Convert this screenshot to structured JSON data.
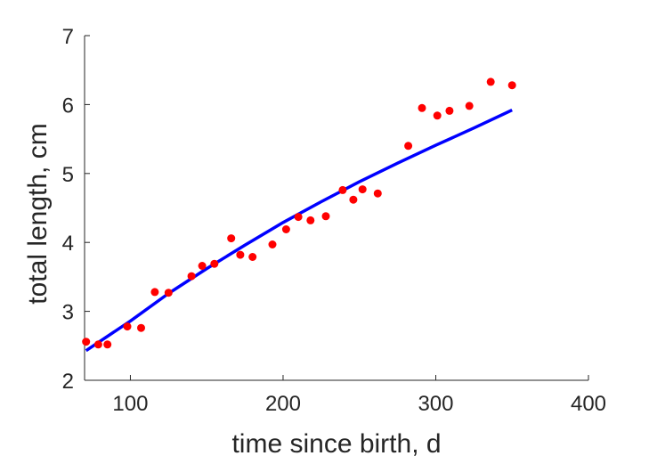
{
  "chart_data": {
    "type": "scatter",
    "xlabel": "time since birth, d",
    "ylabel": "total length, cm",
    "xlim": [
      70,
      400
    ],
    "ylim": [
      2,
      7
    ],
    "xticks": [
      100,
      200,
      300,
      400
    ],
    "yticks": [
      2,
      3,
      4,
      5,
      6,
      7
    ],
    "grid": false,
    "series": [
      {
        "kind": "scatter",
        "color": "#ff0000",
        "points": [
          [
            71,
            2.56
          ],
          [
            79,
            2.52
          ],
          [
            85,
            2.52
          ],
          [
            98,
            2.78
          ],
          [
            107,
            2.76
          ],
          [
            116,
            3.28
          ],
          [
            125,
            3.27
          ],
          [
            140,
            3.51
          ],
          [
            147,
            3.66
          ],
          [
            155,
            3.69
          ],
          [
            166,
            4.06
          ],
          [
            172,
            3.82
          ],
          [
            180,
            3.79
          ],
          [
            193,
            3.97
          ],
          [
            202,
            4.19
          ],
          [
            210,
            4.37
          ],
          [
            218,
            4.32
          ],
          [
            228,
            4.38
          ],
          [
            239,
            4.76
          ],
          [
            246,
            4.62
          ],
          [
            252,
            4.77
          ],
          [
            262,
            4.71
          ],
          [
            282,
            5.4
          ],
          [
            291,
            5.95
          ],
          [
            301,
            5.84
          ],
          [
            309,
            5.91
          ],
          [
            322,
            5.98
          ],
          [
            336,
            6.33
          ],
          [
            350,
            6.28
          ]
        ]
      },
      {
        "kind": "line",
        "color": "#0000ff",
        "points": [
          [
            71,
            2.43
          ],
          [
            100,
            2.86
          ],
          [
            125,
            3.26
          ],
          [
            150,
            3.62
          ],
          [
            175,
            3.96
          ],
          [
            200,
            4.29
          ],
          [
            225,
            4.59
          ],
          [
            250,
            4.88
          ],
          [
            275,
            5.15
          ],
          [
            300,
            5.41
          ],
          [
            325,
            5.66
          ],
          [
            350,
            5.92
          ]
        ]
      }
    ]
  }
}
